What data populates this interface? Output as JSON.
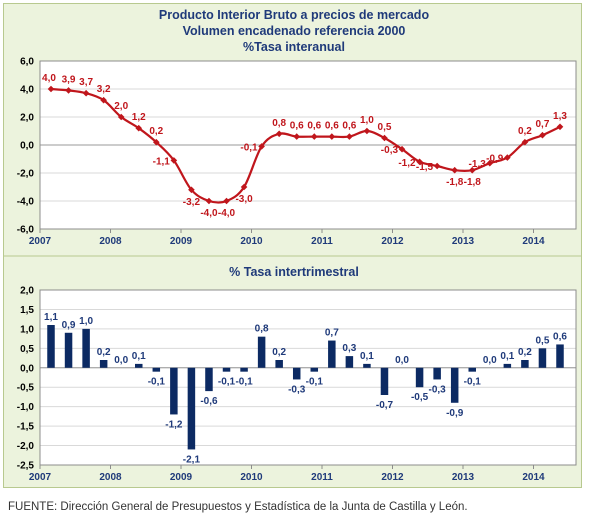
{
  "colors": {
    "frame_bg": "#ecf3dd",
    "plot_bg": "#ffffff",
    "line": "#c0161c",
    "bar": "#0c2a63",
    "title": "#1f3a7a"
  },
  "chart_data": [
    {
      "type": "line",
      "title": "Producto Interior Bruto a precios de mercado",
      "subtitle": "Volumen encadenado referencia 2000",
      "subtitle2": "%Tasa interanual",
      "xlabel": "",
      "ylabel": "",
      "ylim": [
        -6,
        6
      ],
      "y_ticks": [
        "6,0",
        "4,0",
        "2,0",
        "0,0",
        "-2,0",
        "-4,0",
        "-6,0"
      ],
      "x_year_labels": [
        "2007",
        "2008",
        "2009",
        "2010",
        "2011",
        "2012",
        "2013",
        "2014"
      ],
      "grid": true,
      "series": [
        {
          "values": [
            4.0,
            3.9,
            3.7,
            3.2,
            2.0,
            1.2,
            0.2,
            -1.1,
            -3.2,
            -4.0,
            -4.0,
            -3.0,
            -0.1,
            0.8,
            0.6,
            0.6,
            0.6,
            0.6,
            1.0,
            0.5,
            -0.3,
            -1.2,
            -1.5,
            -1.8,
            -1.8,
            -1.3,
            -0.9,
            0.2,
            0.7,
            1.3
          ],
          "labels": [
            "4,0",
            "3,9",
            "3,7",
            "3,2",
            "2,0",
            "1,2",
            "0,2",
            "-1,1",
            "-3,2",
            "-4,0",
            "-4,0",
            "-3,0",
            "-0,1",
            "0,8",
            "0,6",
            "0,6",
            "0,6",
            "0,6",
            "1,0",
            "0,5",
            "-0,3",
            "-1,2",
            "-1,5",
            "-1,8",
            "-1,8",
            "-1,3",
            "-0,9",
            "0,2",
            "0,7",
            "1,3"
          ]
        }
      ]
    },
    {
      "type": "bar",
      "title": "% Tasa intertrimestral",
      "xlabel": "",
      "ylabel": "",
      "ylim": [
        -2.5,
        2.0
      ],
      "y_ticks": [
        "2,0",
        "1,5",
        "1,0",
        "0,5",
        "0,0",
        "-0,5",
        "-1,0",
        "-1,5",
        "-2,0",
        "-2,5"
      ],
      "x_year_labels": [
        "2007",
        "2008",
        "2009",
        "2010",
        "2011",
        "2012",
        "2013",
        "2014"
      ],
      "grid": true,
      "series": [
        {
          "values": [
            1.1,
            0.9,
            1.0,
            0.2,
            0.0,
            0.1,
            -0.1,
            -1.2,
            -2.1,
            -0.6,
            -0.1,
            -0.1,
            0.8,
            0.2,
            -0.3,
            -0.1,
            0.7,
            0.3,
            0.1,
            -0.7,
            0.0,
            -0.5,
            -0.3,
            -0.9,
            -0.1,
            0.0,
            0.1,
            0.2,
            0.5,
            0.6
          ],
          "labels": [
            "1,1",
            "0,9",
            "1,0",
            "0,2",
            "0,0",
            "0,1",
            "-0,1",
            "-1,2",
            "-2,1",
            "-0,6",
            "-0,1",
            "-0,1",
            "0,8",
            "0,2",
            "-0,3",
            "-0,1",
            "0,7",
            "0,3",
            "0,1",
            "-0,7",
            "0,0",
            "-0,5",
            "-0,3",
            "-0,9",
            "-0,1",
            "0,0",
            "0,1",
            "0,2",
            "0,5",
            "0,6"
          ]
        }
      ]
    }
  ],
  "footer": {
    "source": "FUENTE: Dirección General de Presupuestos y Estadística de la Junta de Castilla y León."
  }
}
